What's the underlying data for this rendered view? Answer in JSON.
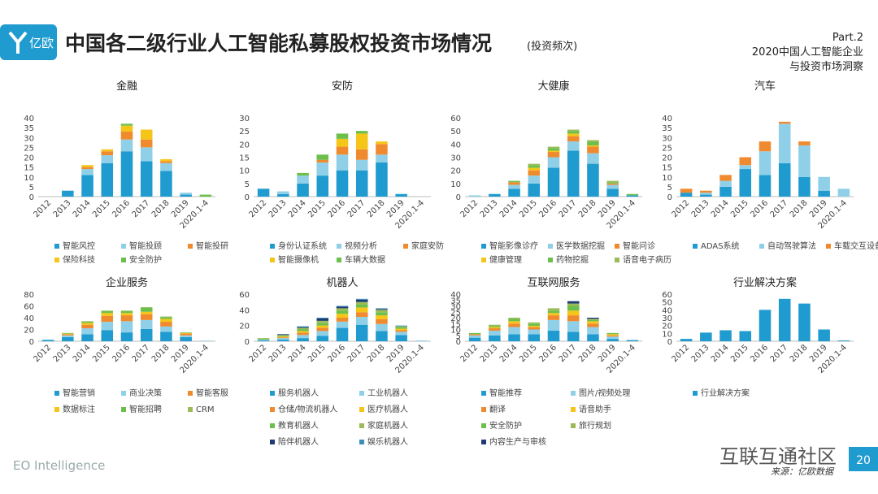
{
  "header": {
    "logo": "亿欧",
    "title": "中国各二级行业人工智能私募股权投资市场情况",
    "subtitle": "(投资频次)",
    "part": "Part.2",
    "part_lines": [
      "2020中国人工智能企业",
      "与投资市场洞察"
    ]
  },
  "footer": {
    "brand": "EO Intelligence",
    "watermark": "互联互通社区",
    "source": "来源：亿欧数据",
    "page": 20
  },
  "chart_data": [
    {
      "type": "bar",
      "stacked": true,
      "title": "金融",
      "categories": [
        "2012",
        "2013",
        "2014",
        "2015",
        "2016",
        "2017",
        "2018",
        "2019",
        "2020.1-4"
      ],
      "ylim": [
        0,
        40
      ],
      "yticks": [
        0,
        5,
        10,
        15,
        20,
        25,
        30,
        35,
        40
      ],
      "series": [
        {
          "name": "智能风控",
          "color": "#1f9bcf",
          "values": [
            0,
            3,
            11,
            17,
            23,
            18,
            13,
            1,
            0
          ]
        },
        {
          "name": "智能投顾",
          "color": "#8fd0e8",
          "values": [
            0,
            0,
            3,
            4,
            6,
            7,
            4,
            1,
            0
          ]
        },
        {
          "name": "智能投研",
          "color": "#f08a2e",
          "values": [
            0,
            0,
            1,
            2,
            4,
            4,
            1,
            0,
            0
          ]
        },
        {
          "name": "保险科技",
          "color": "#f5c518",
          "values": [
            0,
            0,
            1,
            1,
            3,
            5,
            1,
            0,
            0
          ]
        },
        {
          "name": "安全防护",
          "color": "#6dbf4b",
          "values": [
            0,
            0,
            0,
            0,
            1,
            0,
            0,
            0,
            1
          ]
        }
      ]
    },
    {
      "type": "bar",
      "stacked": true,
      "title": "安防",
      "categories": [
        "2012",
        "2013",
        "2014",
        "2015",
        "2016",
        "2017",
        "2018",
        "2019",
        "2020.1-4"
      ],
      "ylim": [
        0,
        30
      ],
      "yticks": [
        0,
        5,
        10,
        15,
        20,
        25,
        30
      ],
      "series": [
        {
          "name": "身份认证系统",
          "color": "#1f9bcf",
          "values": [
            3,
            1,
            5,
            8,
            10,
            10,
            13,
            1,
            0
          ]
        },
        {
          "name": "视频分析",
          "color": "#8fd0e8",
          "values": [
            0,
            1,
            3,
            5,
            6,
            4,
            3,
            0,
            0
          ]
        },
        {
          "name": "家庭安防",
          "color": "#f08a2e",
          "values": [
            0,
            0,
            0,
            1,
            3,
            4,
            4,
            0,
            0
          ]
        },
        {
          "name": "智能摄像机",
          "color": "#f5c518",
          "values": [
            0,
            0,
            0,
            0,
            3,
            6,
            1,
            0,
            0
          ]
        },
        {
          "name": "车辆大数据",
          "color": "#6dbf4b",
          "values": [
            0,
            0,
            1,
            2,
            2,
            1,
            0,
            0,
            0
          ]
        }
      ]
    },
    {
      "type": "bar",
      "stacked": true,
      "title": "大健康",
      "categories": [
        "2012",
        "2013",
        "2014",
        "2015",
        "2016",
        "2017",
        "2018",
        "2019",
        "2020.1-4"
      ],
      "ylim": [
        0,
        60
      ],
      "yticks": [
        0,
        10,
        20,
        30,
        40,
        50,
        60
      ],
      "series": [
        {
          "name": "智能影像诊疗",
          "color": "#1f9bcf",
          "values": [
            0,
            2,
            6,
            10,
            22,
            35,
            25,
            6,
            1
          ]
        },
        {
          "name": "医学数据挖掘",
          "color": "#8fd0e8",
          "values": [
            1,
            0,
            3,
            6,
            8,
            7,
            8,
            3,
            0
          ]
        },
        {
          "name": "智能问诊",
          "color": "#f08a2e",
          "values": [
            0,
            0,
            2,
            4,
            4,
            4,
            5,
            1,
            0
          ]
        },
        {
          "name": "健康管理",
          "color": "#f5c518",
          "values": [
            0,
            0,
            0,
            2,
            1,
            2,
            1,
            0,
            0
          ]
        },
        {
          "name": "药物挖掘",
          "color": "#6dbf4b",
          "values": [
            0,
            0,
            1,
            2,
            2,
            2,
            3,
            1,
            1
          ]
        },
        {
          "name": "语音电子病历",
          "color": "#9bbb59",
          "values": [
            0,
            0,
            0,
            1,
            1,
            1,
            1,
            1,
            0
          ]
        }
      ]
    },
    {
      "type": "bar",
      "stacked": true,
      "title": "汽车",
      "categories": [
        "2012",
        "2013",
        "2014",
        "2015",
        "2016",
        "2017",
        "2018",
        "2019",
        "2020.1-4"
      ],
      "ylim": [
        0,
        40
      ],
      "yticks": [
        0,
        5,
        10,
        15,
        20,
        25,
        30,
        35,
        40
      ],
      "series": [
        {
          "name": "ADAS系统",
          "color": "#1f9bcf",
          "values": [
            2,
            1,
            5,
            14,
            11,
            17,
            10,
            3,
            0
          ]
        },
        {
          "name": "自动驾驶算法",
          "color": "#8fd0e8",
          "values": [
            0,
            1,
            3,
            2,
            12,
            20,
            16,
            7,
            4
          ]
        },
        {
          "name": "车载交互设备",
          "color": "#f08a2e",
          "values": [
            2,
            1,
            3,
            4,
            5,
            1,
            2,
            0,
            0
          ]
        }
      ]
    },
    {
      "type": "bar",
      "stacked": true,
      "title": "企业服务",
      "categories": [
        "2012",
        "2013",
        "2014",
        "2015",
        "2016",
        "2017",
        "2018",
        "2019",
        "2020.1-4"
      ],
      "ylim": [
        0,
        80
      ],
      "yticks": [
        0,
        20,
        40,
        60,
        80
      ],
      "series": [
        {
          "name": "智能营销",
          "color": "#1f9bcf",
          "values": [
            2,
            7,
            12,
            19,
            15,
            21,
            16,
            7,
            0
          ]
        },
        {
          "name": "商业决策",
          "color": "#8fd0e8",
          "values": [
            1,
            3,
            10,
            14,
            19,
            15,
            9,
            3,
            1
          ]
        },
        {
          "name": "智能客服",
          "color": "#f08a2e",
          "values": [
            0,
            2,
            6,
            10,
            10,
            10,
            8,
            3,
            0
          ]
        },
        {
          "name": "数据标注",
          "color": "#f5c518",
          "values": [
            0,
            1,
            3,
            5,
            4,
            4,
            5,
            1,
            0
          ]
        },
        {
          "name": "智能招聘",
          "color": "#6dbf4b",
          "values": [
            0,
            1,
            2,
            3,
            3,
            7,
            3,
            1,
            0
          ]
        },
        {
          "name": "CRM",
          "color": "#9bbb59",
          "values": [
            0,
            0,
            1,
            1,
            1,
            1,
            1,
            0,
            0
          ]
        }
      ]
    },
    {
      "type": "bar",
      "stacked": true,
      "title": "机器人",
      "categories": [
        "2012",
        "2013",
        "2014",
        "2015",
        "2016",
        "2017",
        "2018",
        "2019",
        "2020.1-4"
      ],
      "ylim": [
        0,
        60
      ],
      "yticks": [
        0,
        20,
        40,
        60
      ],
      "series": [
        {
          "name": "服务机器人",
          "color": "#1f9bcf",
          "values": [
            1,
            2,
            4,
            7,
            17,
            21,
            13,
            8,
            0
          ]
        },
        {
          "name": "工业机器人",
          "color": "#8fd0e8",
          "values": [
            1,
            2,
            4,
            6,
            8,
            10,
            9,
            4,
            1
          ]
        },
        {
          "name": "仓储/物流机器人",
          "color": "#f08a2e",
          "values": [
            0,
            1,
            3,
            4,
            5,
            6,
            6,
            2,
            0
          ]
        },
        {
          "name": "医疗机器人",
          "color": "#f5c518",
          "values": [
            0,
            1,
            2,
            3,
            5,
            6,
            5,
            2,
            0
          ]
        },
        {
          "name": "教育机器人",
          "color": "#6dbf4b",
          "values": [
            1,
            1,
            2,
            3,
            4,
            4,
            4,
            2,
            0
          ]
        },
        {
          "name": "家庭机器人",
          "color": "#9bbb59",
          "values": [
            1,
            1,
            2,
            3,
            3,
            3,
            3,
            1,
            0
          ]
        },
        {
          "name": "陪伴机器人",
          "color": "#1f3b73",
          "values": [
            0,
            1,
            1,
            3,
            2,
            3,
            1,
            0,
            0
          ]
        },
        {
          "name": "娱乐机器人",
          "color": "#3a8fb7",
          "values": [
            0,
            0,
            1,
            1,
            1,
            1,
            1,
            1,
            0
          ]
        }
      ]
    },
    {
      "type": "bar",
      "stacked": true,
      "title": "互联网服务",
      "categories": [
        "2012",
        "2013",
        "2014",
        "2015",
        "2016",
        "2017",
        "2018",
        "2019",
        "2020.1-4"
      ],
      "ylim": [
        0,
        40
      ],
      "yticks": [
        0,
        5,
        10,
        15,
        20,
        25,
        30,
        35,
        40
      ],
      "series": [
        {
          "name": "智能推荐",
          "color": "#1f9bcf",
          "values": [
            3,
            5,
            6,
            6,
            9,
            8,
            6,
            2,
            1
          ]
        },
        {
          "name": "图片/视频处理",
          "color": "#8fd0e8",
          "values": [
            2,
            4,
            6,
            4,
            9,
            9,
            6,
            2,
            0
          ]
        },
        {
          "name": "翻译",
          "color": "#f08a2e",
          "values": [
            1,
            2,
            3,
            2,
            4,
            5,
            3,
            1,
            0
          ]
        },
        {
          "name": "语音助手",
          "color": "#f5c518",
          "values": [
            0,
            1,
            2,
            1,
            2,
            4,
            2,
            1,
            0
          ]
        },
        {
          "name": "安全防护",
          "color": "#6dbf4b",
          "values": [
            1,
            1,
            2,
            2,
            2,
            4,
            1,
            1,
            0
          ]
        },
        {
          "name": "旅行规划",
          "color": "#9bbb59",
          "values": [
            0,
            1,
            1,
            1,
            2,
            2,
            1,
            0,
            0
          ]
        },
        {
          "name": "内容生产与审核",
          "color": "#1f3b73",
          "values": [
            0,
            0,
            0,
            0,
            0,
            2,
            1,
            0,
            0
          ]
        }
      ]
    },
    {
      "type": "bar",
      "stacked": true,
      "title": "行业解决方案",
      "categories": [
        "2012",
        "2013",
        "2014",
        "2015",
        "2016",
        "2017",
        "2018",
        "2019",
        "2020.1-4"
      ],
      "ylim": [
        0,
        60
      ],
      "yticks": [
        0,
        10,
        20,
        30,
        40,
        50,
        60
      ],
      "series": [
        {
          "name": "行业解决方案",
          "color": "#1f9bcf",
          "values": [
            3,
            11,
            14,
            13,
            40,
            54,
            48,
            15,
            1
          ]
        }
      ]
    }
  ]
}
